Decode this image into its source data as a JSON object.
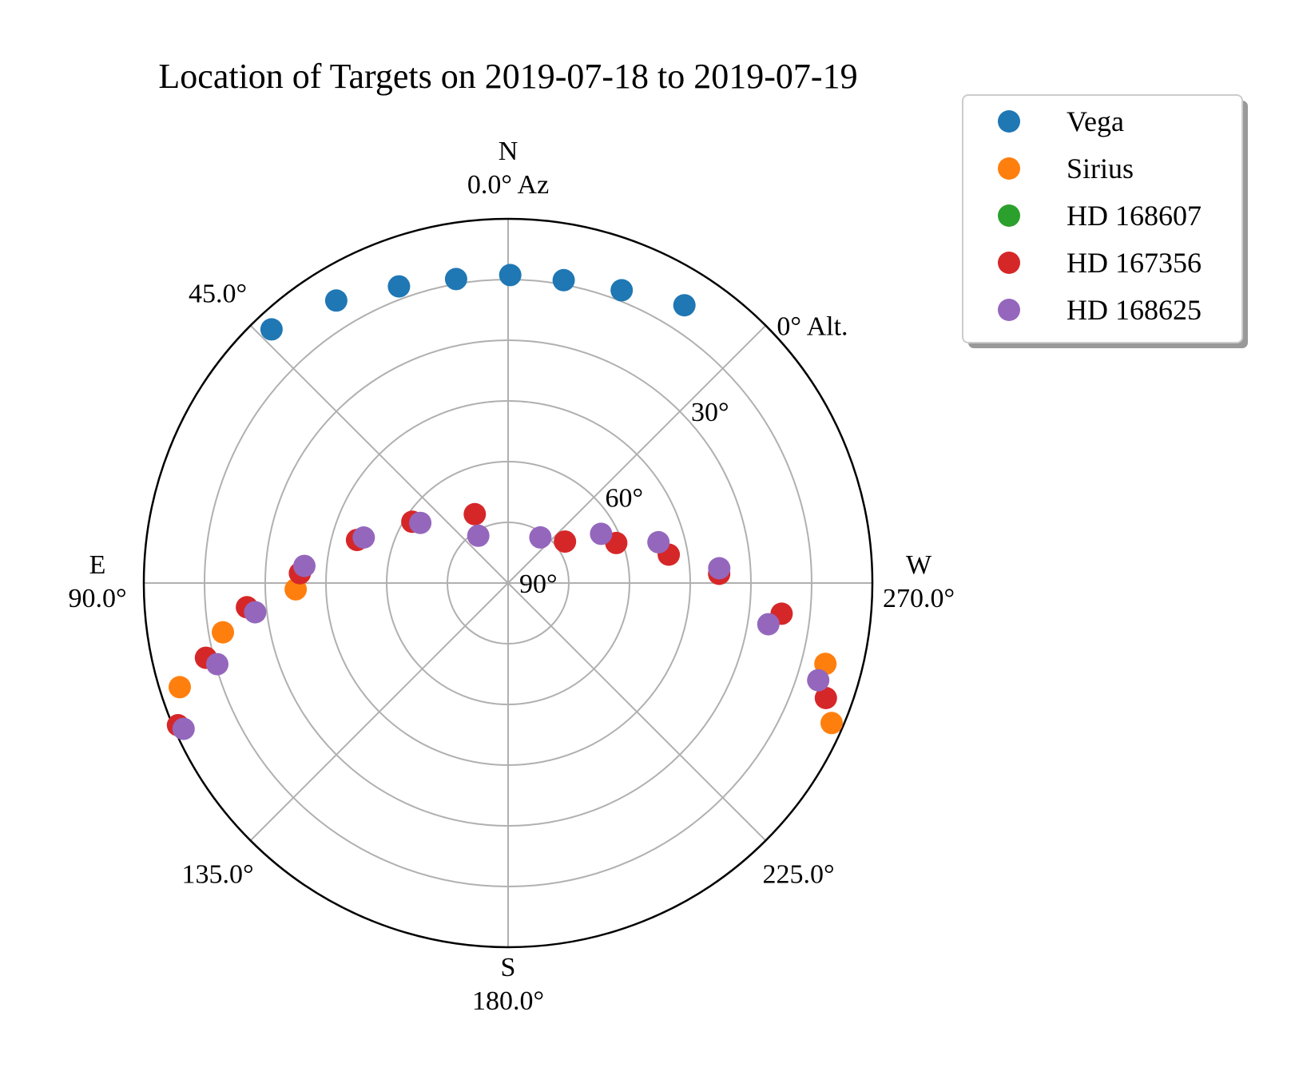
{
  "chart_data": {
    "type": "scatter",
    "projection": "polar (azimuth clockwise from North, altitude 90° at center)",
    "title": "Location of Targets on 2019-07-18 to 2019-07-19",
    "grid": true,
    "legend_placement": "outside top-right",
    "azimuth_ticks": [
      {
        "azimuth": 0,
        "label": "N",
        "sublabel": "0.0° Az"
      },
      {
        "azimuth": 45,
        "label": "45.0°"
      },
      {
        "azimuth": 90,
        "label": "E",
        "sublabel": "90.0°"
      },
      {
        "azimuth": 135,
        "label": "135.0°"
      },
      {
        "azimuth": 180,
        "label": "S",
        "sublabel": "180.0°"
      },
      {
        "azimuth": 225,
        "label": "225.0°"
      },
      {
        "azimuth": 270,
        "label": "W",
        "sublabel": "270.0°"
      }
    ],
    "altitude_ticks": [
      {
        "altitude": 0,
        "label": "0° Alt."
      },
      {
        "altitude": 30,
        "label": "30°"
      },
      {
        "altitude": 60,
        "label": "60°"
      },
      {
        "altitude": 90,
        "label": "90°"
      }
    ],
    "altitude_grid": [
      0,
      15,
      30,
      45,
      60,
      75
    ],
    "series": [
      {
        "name": "Vega",
        "color": "#1f77b4",
        "points": [
          {
            "az": 327.6,
            "alt": 8.7
          },
          {
            "az": 338.8,
            "alt": 12.4
          },
          {
            "az": 349.6,
            "alt": 13.9
          },
          {
            "az": 359.6,
            "alt": 13.9
          },
          {
            "az": 9.7,
            "alt": 13.8
          },
          {
            "az": 20.2,
            "alt": 11.9
          },
          {
            "az": 31.3,
            "alt": 8.3
          },
          {
            "az": 43.0,
            "alt": 4.3
          }
        ]
      },
      {
        "name": "Sirius",
        "color": "#ff7f0e",
        "points": [
          {
            "az": 107.6,
            "alt": 4.9
          },
          {
            "az": 99.8,
            "alt": 18.5
          },
          {
            "az": 91.7,
            "alt": 37.5
          },
          {
            "az": 255.7,
            "alt": 9.1
          },
          {
            "az": 246.6,
            "alt": 2.9
          }
        ]
      },
      {
        "name": "HD 168607",
        "color": "#2ca02c",
        "points": []
      },
      {
        "name": "HD 167356",
        "color": "#d62728",
        "points": [
          {
            "az": 113.3,
            "alt": 1.2
          },
          {
            "az": 103.9,
            "alt": 13.1
          },
          {
            "az": 95.3,
            "alt": 25.2
          },
          {
            "az": 87.3,
            "alt": 38.5
          },
          {
            "az": 74.1,
            "alt": 51.2
          },
          {
            "az": 57.4,
            "alt": 61.9
          },
          {
            "az": 25.8,
            "alt": 71.1
          },
          {
            "az": 306.1,
            "alt": 72.6
          },
          {
            "az": 290.3,
            "alt": 61.5
          },
          {
            "az": 280.0,
            "alt": 49.7
          },
          {
            "az": 272.5,
            "alt": 37.8
          },
          {
            "az": 263.6,
            "alt": 22.0
          },
          {
            "az": 250.1,
            "alt": 6.5
          }
        ]
      },
      {
        "name": "HD 168625",
        "color": "#9467bd",
        "points": [
          {
            "az": 114.2,
            "alt": 2.1
          },
          {
            "az": 105.6,
            "alt": 15.4
          },
          {
            "az": 96.6,
            "alt": 27.1
          },
          {
            "az": 85.2,
            "alt": 39.5
          },
          {
            "az": 72.5,
            "alt": 52.6
          },
          {
            "az": 55.6,
            "alt": 63.7
          },
          {
            "az": 32.2,
            "alt": 76.2
          },
          {
            "az": 324.7,
            "alt": 76.2
          },
          {
            "az": 297.9,
            "alt": 64.0
          },
          {
            "az": 285.2,
            "alt": 51.5
          },
          {
            "az": 274.0,
            "alt": 37.7
          },
          {
            "az": 261.0,
            "alt": 24.9
          },
          {
            "az": 252.6,
            "alt": 9.7
          }
        ]
      }
    ]
  }
}
